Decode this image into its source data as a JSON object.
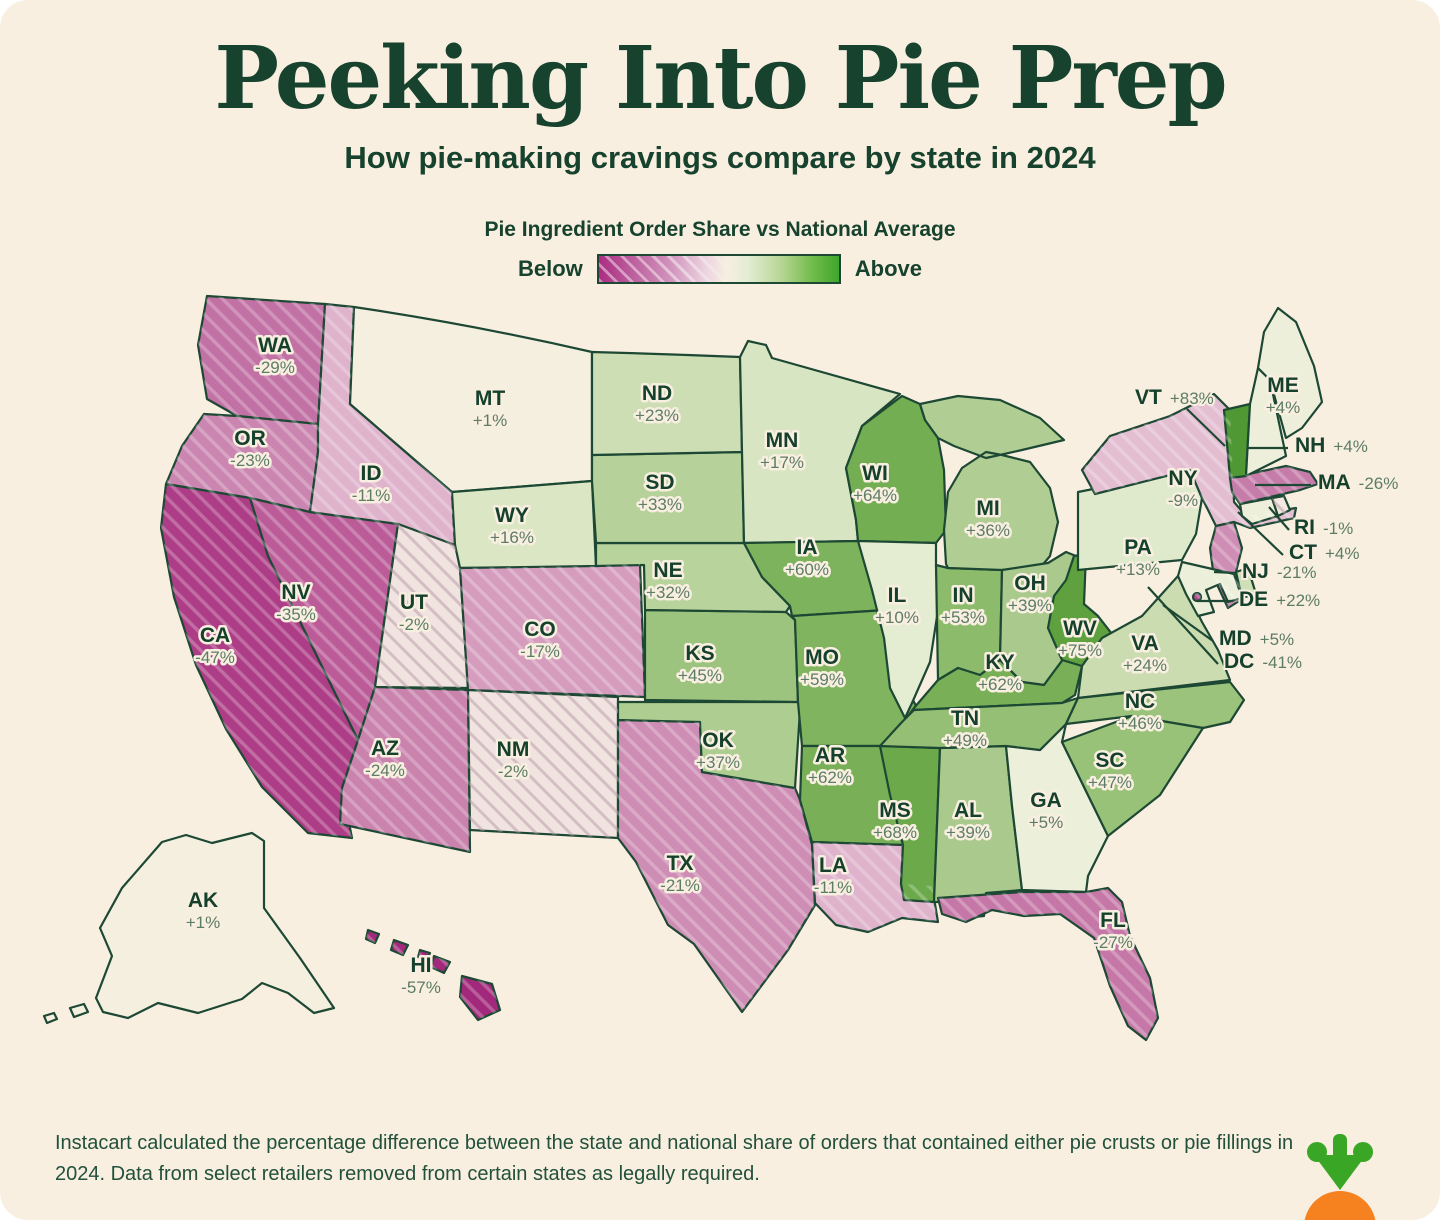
{
  "header": {
    "title": "Peeking Into Pie Prep",
    "subtitle": "How pie-making cravings compare by state in 2024"
  },
  "legend": {
    "title": "Pie Ingredient Order Share vs National Average",
    "below_label": "Below",
    "above_label": "Above"
  },
  "footer": {
    "note": "Instacart calculated the percentage difference between the state and national share of orders that contained either pie crusts or pie fillings in 2024. Data from select retailers removed from certain states as legally required.",
    "logo": "instacart-carrot-logo"
  },
  "colors": {
    "background": "#f8efe0",
    "text_dark": "#17422e",
    "value_text": "#5d7c66",
    "state_border": "#1d4834",
    "logo_green": "#3aa625",
    "logo_orange": "#f6821f",
    "scale": [
      {
        "value": -60,
        "color": "#9e2276"
      },
      {
        "value": -40,
        "color": "#b54b8f"
      },
      {
        "value": -25,
        "color": "#c77fab"
      },
      {
        "value": -12,
        "color": "#ddaec9"
      },
      {
        "value": -3,
        "color": "#eedde0"
      },
      {
        "value": 0,
        "color": "#f6efe0"
      },
      {
        "value": 3,
        "color": "#eff0dd"
      },
      {
        "value": 12,
        "color": "#e1ebce"
      },
      {
        "value": 25,
        "color": "#c9dbaf"
      },
      {
        "value": 40,
        "color": "#a7c989"
      },
      {
        "value": 55,
        "color": "#89b967"
      },
      {
        "value": 70,
        "color": "#66a645"
      },
      {
        "value": 85,
        "color": "#4d9630"
      }
    ]
  },
  "chart_data": {
    "type": "heatmap",
    "variant": "us-state-choropleth",
    "title": "Pie Ingredient Order Share vs National Average",
    "unit": "% vs national average",
    "legend": {
      "below": "Below",
      "above": "Above"
    },
    "states": [
      {
        "abbr": "WA",
        "value": -29
      },
      {
        "abbr": "OR",
        "value": -23
      },
      {
        "abbr": "CA",
        "value": -47
      },
      {
        "abbr": "NV",
        "value": -35
      },
      {
        "abbr": "ID",
        "value": -11
      },
      {
        "abbr": "MT",
        "value": 1
      },
      {
        "abbr": "WY",
        "value": 16
      },
      {
        "abbr": "UT",
        "value": -2
      },
      {
        "abbr": "CO",
        "value": -17
      },
      {
        "abbr": "AZ",
        "value": -24
      },
      {
        "abbr": "NM",
        "value": -2
      },
      {
        "abbr": "TX",
        "value": -21
      },
      {
        "abbr": "OK",
        "value": 37
      },
      {
        "abbr": "KS",
        "value": 45
      },
      {
        "abbr": "NE",
        "value": 32
      },
      {
        "abbr": "SD",
        "value": 33
      },
      {
        "abbr": "ND",
        "value": 23
      },
      {
        "abbr": "MN",
        "value": 17
      },
      {
        "abbr": "IA",
        "value": 60
      },
      {
        "abbr": "MO",
        "value": 59
      },
      {
        "abbr": "AR",
        "value": 62
      },
      {
        "abbr": "LA",
        "value": -11
      },
      {
        "abbr": "MS",
        "value": 68
      },
      {
        "abbr": "AL",
        "value": 39
      },
      {
        "abbr": "GA",
        "value": 5
      },
      {
        "abbr": "FL",
        "value": -27
      },
      {
        "abbr": "WI",
        "value": 64
      },
      {
        "abbr": "IL",
        "value": 10
      },
      {
        "abbr": "IN",
        "value": 53
      },
      {
        "abbr": "MI",
        "value": 36
      },
      {
        "abbr": "OH",
        "value": 39
      },
      {
        "abbr": "KY",
        "value": 62
      },
      {
        "abbr": "TN",
        "value": 49
      },
      {
        "abbr": "WV",
        "value": 75
      },
      {
        "abbr": "VA",
        "value": 24
      },
      {
        "abbr": "NC",
        "value": 46
      },
      {
        "abbr": "SC",
        "value": 47
      },
      {
        "abbr": "PA",
        "value": 13
      },
      {
        "abbr": "NY",
        "value": -9
      },
      {
        "abbr": "NJ",
        "value": -21
      },
      {
        "abbr": "DE",
        "value": 22
      },
      {
        "abbr": "MD",
        "value": 5
      },
      {
        "abbr": "DC",
        "value": -41
      },
      {
        "abbr": "CT",
        "value": 4
      },
      {
        "abbr": "RI",
        "value": -1
      },
      {
        "abbr": "MA",
        "value": -26
      },
      {
        "abbr": "VT",
        "value": 83
      },
      {
        "abbr": "NH",
        "value": 4
      },
      {
        "abbr": "ME",
        "value": 4
      },
      {
        "abbr": "AK",
        "value": 1
      },
      {
        "abbr": "HI",
        "value": -57
      }
    ]
  }
}
